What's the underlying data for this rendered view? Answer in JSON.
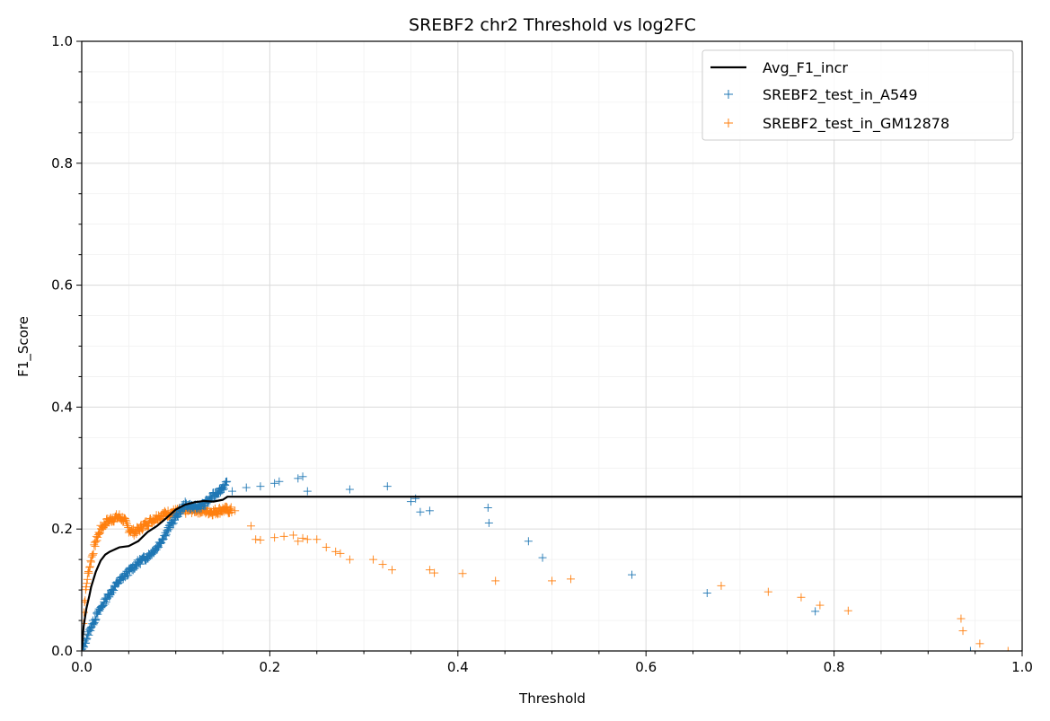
{
  "chart_data": {
    "type": "scatter",
    "title": "SREBF2 chr2 Threshold vs log2FC",
    "xlabel": "Threshold",
    "ylabel": "F1_Score",
    "xlim": [
      0,
      1
    ],
    "ylim": [
      0,
      1
    ],
    "x_ticks": [
      "0.0",
      "0.2",
      "0.4",
      "0.6",
      "0.8",
      "1.0"
    ],
    "y_ticks": [
      "0.0",
      "0.2",
      "0.4",
      "0.6",
      "0.8",
      "1.0"
    ],
    "grid": true,
    "minor_grid": true,
    "legend_position": "top-right",
    "colors": {
      "avg": "#000000",
      "a549": "#1f77b4",
      "gm12878": "#ff7f0e"
    },
    "series": [
      {
        "name": "Avg_F1_incr",
        "kind": "line",
        "x": [
          0.0,
          0.002,
          0.005,
          0.008,
          0.01,
          0.015,
          0.02,
          0.025,
          0.03,
          0.04,
          0.05,
          0.06,
          0.07,
          0.08,
          0.09,
          0.1,
          0.11,
          0.12,
          0.13,
          0.14,
          0.15,
          0.155,
          0.2,
          0.4,
          0.6,
          0.8,
          1.0
        ],
        "y": [
          0.0,
          0.04,
          0.07,
          0.09,
          0.105,
          0.13,
          0.148,
          0.158,
          0.163,
          0.17,
          0.172,
          0.18,
          0.195,
          0.205,
          0.218,
          0.232,
          0.24,
          0.244,
          0.246,
          0.245,
          0.248,
          0.253,
          0.253,
          0.253,
          0.253,
          0.253,
          0.253
        ]
      },
      {
        "name": "SREBF2_test_in_A549",
        "kind": "scatter",
        "marker": "+",
        "curve": {
          "x": [
            0.0,
            0.005,
            0.01,
            0.02,
            0.03,
            0.04,
            0.05,
            0.06,
            0.07,
            0.08,
            0.09,
            0.1,
            0.11,
            0.12,
            0.13,
            0.14,
            0.15,
            0.155
          ],
          "y": [
            0.0,
            0.02,
            0.04,
            0.07,
            0.095,
            0.115,
            0.13,
            0.145,
            0.155,
            0.17,
            0.195,
            0.22,
            0.24,
            0.235,
            0.24,
            0.255,
            0.268,
            0.275
          ]
        },
        "x": [
          0.16,
          0.175,
          0.19,
          0.205,
          0.21,
          0.23,
          0.235,
          0.24,
          0.285,
          0.325,
          0.35,
          0.355,
          0.36,
          0.37,
          0.432,
          0.433,
          0.475,
          0.49,
          0.585,
          0.665,
          0.78,
          0.945
        ],
        "y": [
          0.262,
          0.268,
          0.27,
          0.275,
          0.278,
          0.283,
          0.286,
          0.262,
          0.265,
          0.27,
          0.245,
          0.25,
          0.228,
          0.23,
          0.235,
          0.21,
          0.18,
          0.153,
          0.125,
          0.095,
          0.065,
          0.0
        ]
      },
      {
        "name": "SREBF2_test_in_GM12878",
        "kind": "scatter",
        "marker": "+",
        "curve": {
          "x": [
            0.0,
            0.003,
            0.006,
            0.01,
            0.015,
            0.02,
            0.025,
            0.03,
            0.035,
            0.04,
            0.045,
            0.05,
            0.055,
            0.06,
            0.065,
            0.07,
            0.075,
            0.08,
            0.09,
            0.1,
            0.11,
            0.12,
            0.13,
            0.14,
            0.15,
            0.16
          ],
          "y": [
            0.0,
            0.08,
            0.12,
            0.15,
            0.18,
            0.2,
            0.21,
            0.215,
            0.218,
            0.22,
            0.215,
            0.2,
            0.195,
            0.198,
            0.205,
            0.21,
            0.215,
            0.22,
            0.225,
            0.228,
            0.23,
            0.232,
            0.23,
            0.228,
            0.232,
            0.23
          ]
        },
        "x": [
          0.163,
          0.18,
          0.185,
          0.19,
          0.205,
          0.215,
          0.225,
          0.23,
          0.235,
          0.24,
          0.25,
          0.26,
          0.27,
          0.275,
          0.285,
          0.31,
          0.32,
          0.33,
          0.37,
          0.375,
          0.405,
          0.44,
          0.5,
          0.52,
          0.68,
          0.73,
          0.765,
          0.785,
          0.815,
          0.935,
          0.937,
          0.955,
          0.985
        ],
        "y": [
          0.23,
          0.205,
          0.183,
          0.182,
          0.186,
          0.188,
          0.19,
          0.18,
          0.185,
          0.183,
          0.183,
          0.17,
          0.163,
          0.16,
          0.15,
          0.15,
          0.142,
          0.133,
          0.133,
          0.128,
          0.127,
          0.115,
          0.115,
          0.118,
          0.107,
          0.097,
          0.088,
          0.075,
          0.066,
          0.053,
          0.033,
          0.012,
          0.0
        ]
      }
    ]
  }
}
